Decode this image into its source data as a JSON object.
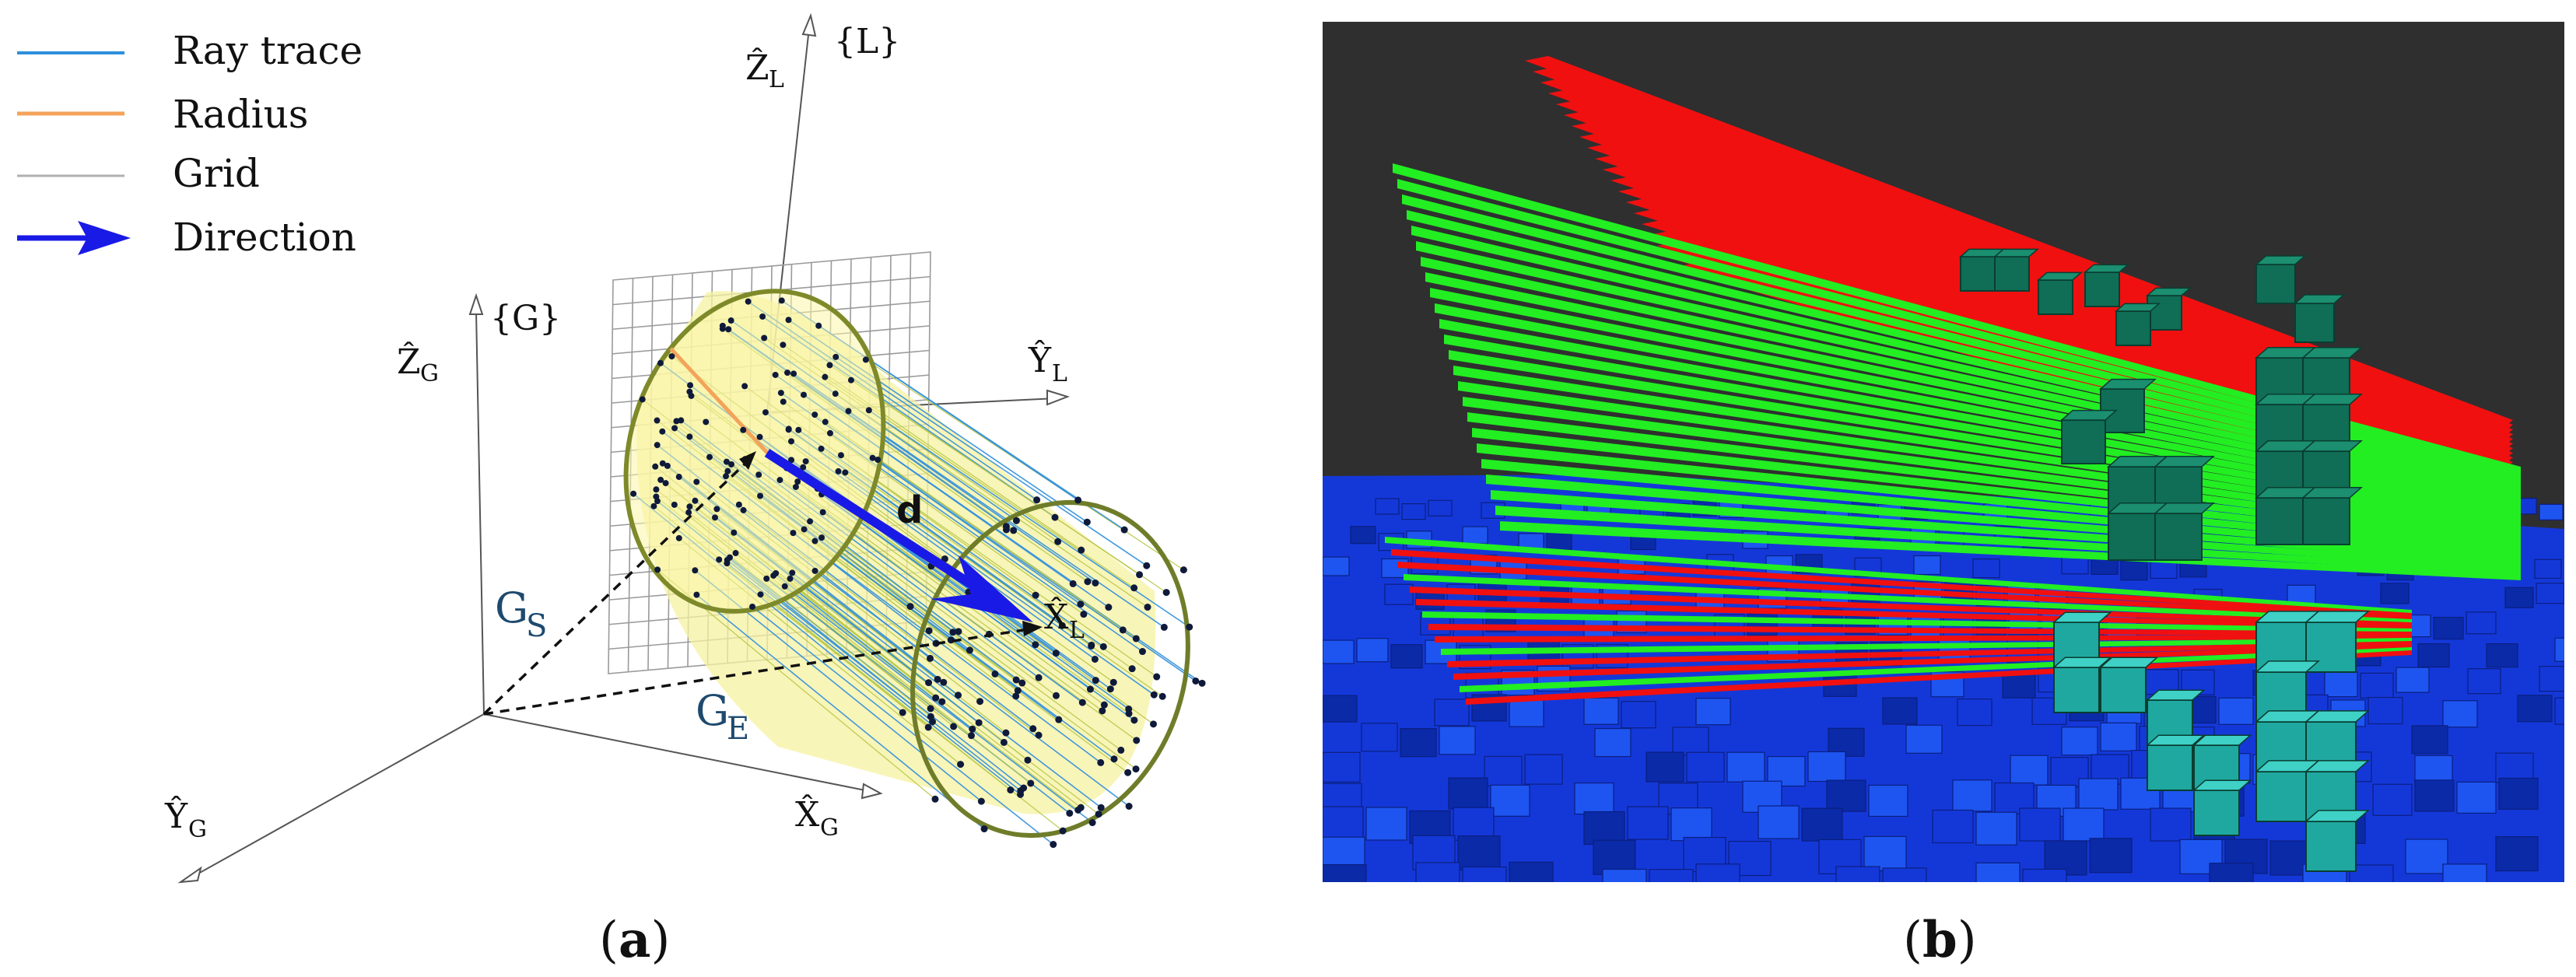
{
  "legend": {
    "items": [
      {
        "label": "Ray trace",
        "color": "#2f8fdc"
      },
      {
        "label": "Radius",
        "color": "#f3a35a"
      },
      {
        "label": "Grid",
        "color": "#b0b0b0"
      },
      {
        "label": "Direction",
        "color": "#1a1ae6"
      }
    ]
  },
  "panel_a": {
    "frame_L": "{L}",
    "frame_G": "{G}",
    "axes": {
      "zL": {
        "base": "Ẑ",
        "sub": "L"
      },
      "yL": {
        "base": "Ŷ",
        "sub": "L"
      },
      "xL": {
        "base": "X̂",
        "sub": "L"
      },
      "zG": {
        "base": "Ẑ",
        "sub": "G"
      },
      "yG": {
        "base": "Ŷ",
        "sub": "G"
      },
      "xG": {
        "base": "X̂",
        "sub": "G"
      }
    },
    "gs": {
      "base": "G",
      "sub": "S"
    },
    "ge": {
      "base": "G",
      "sub": "E"
    },
    "direction_label": "d",
    "caption_open": "(",
    "caption_letter": "a",
    "caption_close": ")"
  },
  "panel_b": {
    "caption_open": "(",
    "caption_letter": "b",
    "caption_close": ")",
    "colors": {
      "background": "#2f2f2f",
      "ground": "#1438d8",
      "free_ray": "#22ee22",
      "occupied_ray": "#f01010",
      "voxel": "#0f6e55",
      "voxel_light": "#1fa8a0"
    }
  }
}
